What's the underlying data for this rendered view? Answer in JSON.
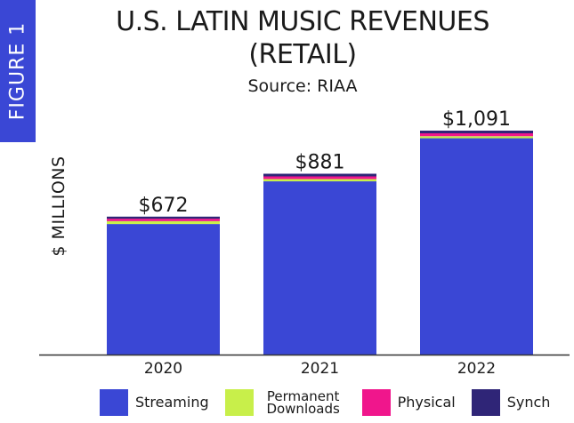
{
  "figure_tab": "FIGURE 1",
  "colors": {
    "streaming": "#3a47d5",
    "downloads": "#c8ef4a",
    "physical": "#f0168c",
    "synch": "#2f2577",
    "tab": "#3a47d5"
  },
  "chart_data": {
    "type": "bar",
    "stacked": true,
    "title": "U.S. LATIN MUSIC REVENUES (RETAIL)",
    "subtitle": "Source: RIAA",
    "ylabel": "$ MILLIONS",
    "xlabel": "",
    "categories": [
      "2020",
      "2021",
      "2022"
    ],
    "totals": [
      672,
      881,
      1091
    ],
    "total_labels": [
      "$672",
      "$881",
      "$1,091"
    ],
    "series": [
      {
        "name": "Streaming",
        "values": [
          636,
          844,
          1054
        ]
      },
      {
        "name": "Permanent Downloads",
        "values": [
          14,
          11,
          10
        ]
      },
      {
        "name": "Physical",
        "values": [
          12,
          13,
          14
        ]
      },
      {
        "name": "Synch",
        "values": [
          10,
          13,
          13
        ]
      }
    ],
    "ylim": [
      0,
      1100
    ],
    "grid": false,
    "legend_position": "bottom"
  },
  "legend": [
    {
      "label": "Streaming",
      "color_key": "streaming"
    },
    {
      "label": "Permanent Downloads",
      "color_key": "downloads"
    },
    {
      "label": "Physical",
      "color_key": "physical"
    },
    {
      "label": "Synch",
      "color_key": "synch"
    }
  ]
}
